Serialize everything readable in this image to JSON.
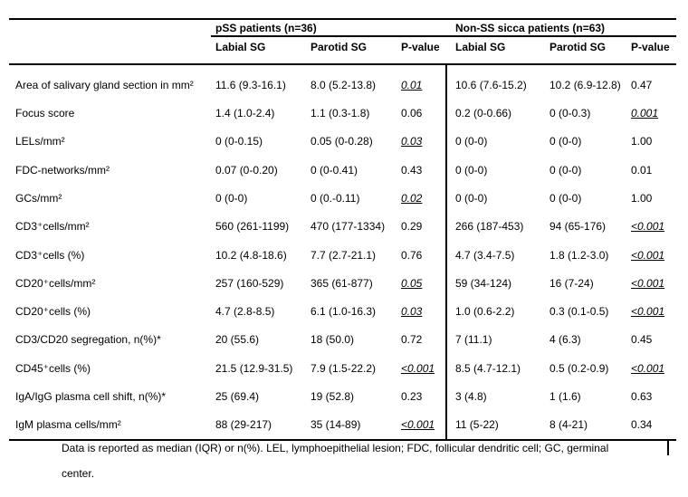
{
  "colors": {
    "text": "#000000",
    "background": "#ffffff",
    "border": "#000000"
  },
  "table": {
    "group_headers": [
      "pSS patients (n=36)",
      "Non-SS sicca patients (n=63)"
    ],
    "column_headers": [
      "Labial SG",
      "Parotid SG",
      "P-value",
      "Labial SG",
      "Parotid SG",
      "P-value"
    ],
    "rows": [
      {
        "label": "Area of salivary gland section in mm²",
        "values": [
          "11.6 (9.3-16.1)",
          "8.0 (5.2-13.8)",
          "0.01",
          "10.6 (7.6-15.2)",
          "10.2 (6.9-12.8)",
          "0.47"
        ],
        "sig": [
          false,
          false,
          true,
          false,
          false,
          false
        ]
      },
      {
        "label": "Focus score",
        "values": [
          "1.4 (1.0-2.4)",
          "1.1 (0.3-1.8)",
          "0.06",
          "0.2 (0-0.66)",
          "0 (0-0.3)",
          "0.001"
        ],
        "sig": [
          false,
          false,
          false,
          false,
          false,
          true
        ]
      },
      {
        "label": "LELs/mm²",
        "values": [
          "0 (0-0.15)",
          "0.05 (0-0.28)",
          "0.03",
          "0 (0-0)",
          "0 (0-0)",
          "1.00"
        ],
        "sig": [
          false,
          false,
          true,
          false,
          false,
          false
        ]
      },
      {
        "label": "FDC-networks/mm²",
        "values": [
          "0.07 (0-0.20)",
          "0 (0-0.41)",
          "0.43",
          "0 (0-0)",
          "0 (0-0)",
          "0.01"
        ],
        "sig": [
          false,
          false,
          false,
          false,
          false,
          false
        ]
      },
      {
        "label": "GCs/mm²",
        "values": [
          "0 (0-0)",
          "0 (0.-0.11)",
          "0.02",
          "0 (0-0)",
          "0 (0-0)",
          "1.00"
        ],
        "sig": [
          false,
          false,
          true,
          false,
          false,
          false
        ]
      },
      {
        "label": "CD3⁺cells/mm²",
        "values": [
          "560 (261-1199)",
          "470 (177-1334)",
          "0.29",
          "266 (187-453)",
          "94 (65-176)",
          "<0.001"
        ],
        "sig": [
          false,
          false,
          false,
          false,
          false,
          true
        ]
      },
      {
        "label": "CD3⁺cells (%)",
        "values": [
          "10.2 (4.8-18.6)",
          "7.7 (2.7-21.1)",
          "0.76",
          "4.7 (3.4-7.5)",
          "1.8 (1.2-3.0)",
          "<0.001"
        ],
        "sig": [
          false,
          false,
          false,
          false,
          false,
          true
        ]
      },
      {
        "label": "CD20⁺cells/mm²",
        "values": [
          "257 (160-529)",
          "365 (61-877)",
          "0.05",
          "59 (34-124)",
          "16 (7-24)",
          "<0.001"
        ],
        "sig": [
          false,
          false,
          true,
          false,
          false,
          true
        ]
      },
      {
        "label": "CD20⁺cells (%)",
        "values": [
          "4.7 (2.8-8.5)",
          "6.1 (1.0-16.3)",
          "0.03",
          "1.0 (0.6-2.2)",
          "0.3 (0.1-0.5)",
          "<0.001"
        ],
        "sig": [
          false,
          false,
          true,
          false,
          false,
          true
        ]
      },
      {
        "label": "CD3/CD20 segregation, n(%)*",
        "values": [
          "20 (55.6)",
          "18 (50.0)",
          "0.72",
          "7 (11.1)",
          "4 (6.3)",
          "0.45"
        ],
        "sig": [
          false,
          false,
          false,
          false,
          false,
          false
        ]
      },
      {
        "label": "CD45⁺cells (%)",
        "values": [
          "21.5 (12.9-31.5)",
          "7.9 (1.5-22.2)",
          "<0.001",
          "8.5 (4.7-12.1)",
          "0.5 (0.2-0.9)",
          "<0.001"
        ],
        "sig": [
          false,
          false,
          true,
          false,
          false,
          true
        ]
      },
      {
        "label": "IgA/IgG plasma cell shift, n(%)*",
        "values": [
          "25 (69.4)",
          "19 (52.8)",
          "0.23",
          "3 (4.8)",
          "1 (1.6)",
          "0.63"
        ],
        "sig": [
          false,
          false,
          false,
          false,
          false,
          false
        ]
      },
      {
        "label": "IgM plasma cells/mm²",
        "values": [
          "88 (29-217)",
          "35 (14-89)",
          "<0.001",
          "11 (5-22)",
          "8 (4-21)",
          "0.34"
        ],
        "sig": [
          false,
          false,
          true,
          false,
          false,
          false
        ]
      }
    ]
  },
  "footnote": {
    "line1": "Data is reported as median (IQR) or n(%). LEL, lymphoepithelial lesion; FDC, follicular dendritic cell; GC, germinal",
    "line2": "center."
  }
}
